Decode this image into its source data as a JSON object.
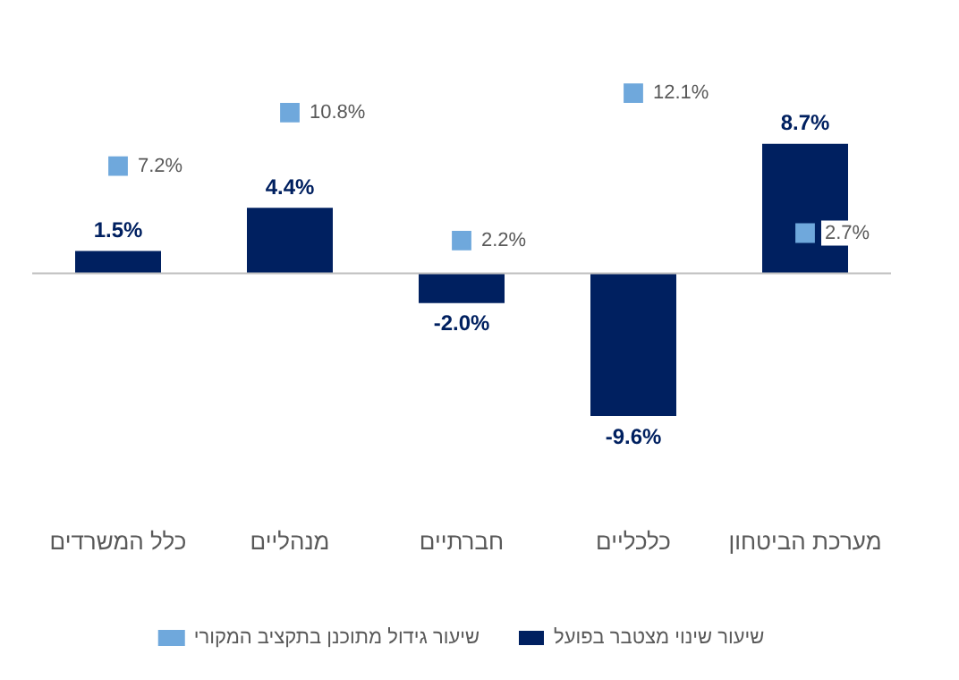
{
  "chart_data": {
    "type": "bar",
    "categories": [
      "כלל המשרדים",
      "מנהליים",
      "חברתיים",
      "כלכליים",
      "מערכת הביטחון"
    ],
    "series": [
      {
        "name": "שיעור שינוי מצטבר בפועל",
        "color": "#002060",
        "values": [
          1.5,
          4.4,
          -2.0,
          -9.6,
          8.7
        ],
        "value_labels": [
          "1.5%",
          "4.4%",
          "-2.0%",
          "-9.6%",
          "8.7%"
        ]
      },
      {
        "name": "שיעור גידול מתוכנן בתקציב המקורי",
        "type": "scatter",
        "color": "#6fa8dc",
        "x": [
          "כלל המשרדים",
          "מנהליים",
          "חברתיים",
          "כלכליים",
          "מערכת הביטחון"
        ],
        "values": [
          7.2,
          10.8,
          2.2,
          12.1,
          2.7
        ],
        "value_labels": [
          "7.2%",
          "10.8%",
          "2.2%",
          "12.1%",
          "2.7%"
        ]
      }
    ],
    "grid": false,
    "legend": "bottom",
    "marker": "square"
  }
}
